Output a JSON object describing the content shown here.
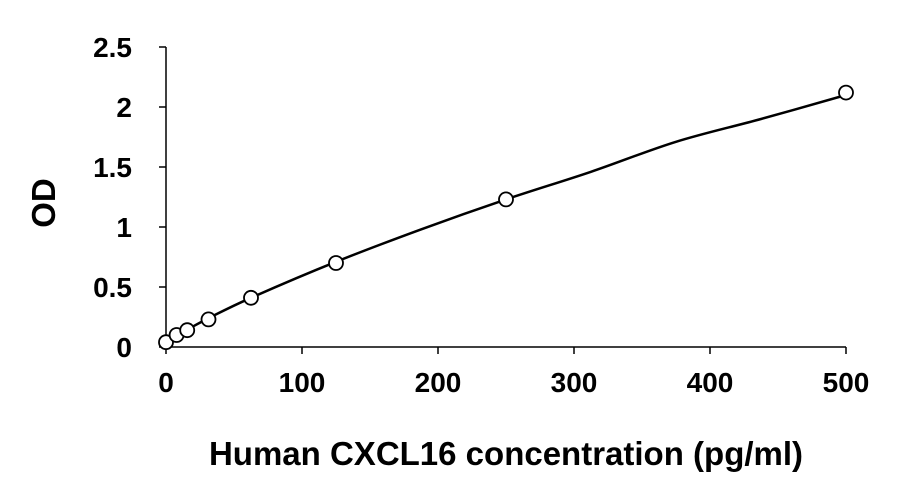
{
  "chart_data": {
    "type": "scatter",
    "title": "",
    "xlabel": "Human CXCL16 concentration (pg/ml)",
    "ylabel": "OD",
    "xlim": [
      0,
      500
    ],
    "ylim": [
      0,
      2.5
    ],
    "xticks": [
      0,
      100,
      200,
      300,
      400,
      500
    ],
    "xtick_labels": [
      "0",
      "100",
      "200",
      "300",
      "400",
      "500"
    ],
    "yticks": [
      0,
      0.5,
      1,
      1.5,
      2,
      2.5
    ],
    "ytick_labels": [
      "0",
      "0.5",
      "1",
      "1.5",
      "2",
      "2.5"
    ],
    "grid": false,
    "legend": "none",
    "series": [
      {
        "marker": "open-circle",
        "x": [
          0,
          7.8,
          15.6,
          31.25,
          62.5,
          125,
          250,
          500
        ],
        "y": [
          0.04,
          0.1,
          0.14,
          0.23,
          0.41,
          0.7,
          1.23,
          2.12
        ]
      }
    ],
    "trendline": {
      "type": "smooth-curve",
      "x": [
        0,
        7.8,
        15.6,
        31.25,
        62.5,
        125,
        187.5,
        250,
        312.5,
        375,
        437.5,
        500
      ],
      "y": [
        0.04,
        0.1,
        0.145,
        0.24,
        0.41,
        0.71,
        0.98,
        1.23,
        1.46,
        1.71,
        1.9,
        2.1
      ]
    },
    "colors": {
      "axis": "#000000",
      "line": "#000000",
      "marker_fill": "#ffffff",
      "marker_stroke": "#000000"
    }
  }
}
